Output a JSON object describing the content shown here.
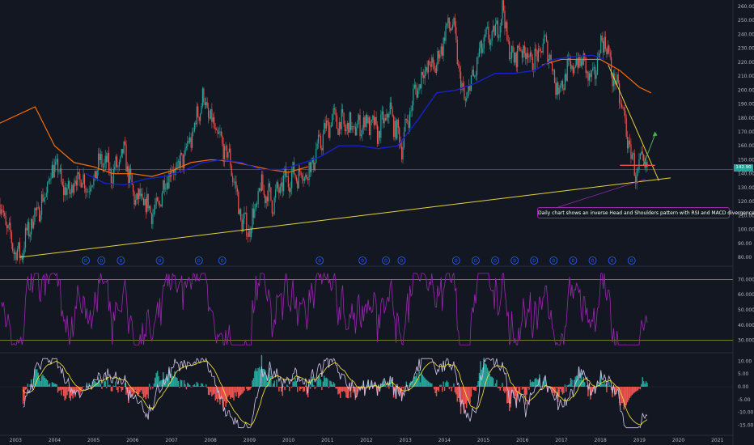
{
  "chart_data": [
    {
      "type": "candlestick",
      "panel": "price",
      "y_ticks": [
        "260.00",
        "250.00",
        "240.00",
        "230.00",
        "220.00",
        "210.00",
        "200.00",
        "190.00",
        "180.00",
        "170.00",
        "160.00",
        "150.00",
        "140.00",
        "130.00",
        "120.00",
        "110.00",
        "100.00",
        "90.00",
        "80.00"
      ],
      "ylim": [
        80,
        260
      ],
      "last_price_label": "142.90",
      "annotation": "Daily chart shows an inverse Head and Shoulders pattern with RSI and MACD divergence.",
      "dividend_marker_label": "D",
      "dividend_dates": [
        2004.8,
        2005.2,
        2005.7,
        2006.7,
        2007.7,
        2008.3,
        2010.8,
        2011.9,
        2012.5,
        2012.9,
        2014.3,
        2014.8,
        2015.3,
        2015.8,
        2016.3,
        2016.8,
        2017.3,
        2017.8,
        2018.3,
        2018.8
      ],
      "price_path": [
        [
          2002.6,
          118
        ],
        [
          2002.9,
          90
        ],
        [
          2003.1,
          80
        ],
        [
          2003.4,
          105
        ],
        [
          2003.7,
          120
        ],
        [
          2004.0,
          148
        ],
        [
          2004.3,
          125
        ],
        [
          2004.6,
          138
        ],
        [
          2004.9,
          130
        ],
        [
          2005.2,
          150
        ],
        [
          2005.5,
          140
        ],
        [
          2005.8,
          155
        ],
        [
          2006.0,
          125
        ],
        [
          2006.3,
          118
        ],
        [
          2006.6,
          112
        ],
        [
          2006.9,
          140
        ],
        [
          2007.2,
          145
        ],
        [
          2007.5,
          165
        ],
        [
          2007.8,
          195
        ],
        [
          2008.0,
          178
        ],
        [
          2008.3,
          160
        ],
        [
          2008.5,
          150
        ],
        [
          2008.8,
          105
        ],
        [
          2009.0,
          100
        ],
        [
          2009.3,
          130
        ],
        [
          2009.6,
          120
        ],
        [
          2009.9,
          135
        ],
        [
          2010.2,
          140
        ],
        [
          2010.5,
          140
        ],
        [
          2010.8,
          162
        ],
        [
          2011.1,
          180
        ],
        [
          2011.4,
          175
        ],
        [
          2011.7,
          172
        ],
        [
          2012.0,
          178
        ],
        [
          2012.3,
          170
        ],
        [
          2012.6,
          185
        ],
        [
          2012.9,
          160
        ],
        [
          2013.2,
          195
        ],
        [
          2013.5,
          215
        ],
        [
          2013.8,
          218
        ],
        [
          2014.0,
          240
        ],
        [
          2014.2,
          250
        ],
        [
          2014.5,
          190
        ],
        [
          2014.8,
          215
        ],
        [
          2015.0,
          235
        ],
        [
          2015.3,
          240
        ],
        [
          2015.5,
          258
        ],
        [
          2015.7,
          222
        ],
        [
          2016.0,
          230
        ],
        [
          2016.3,
          220
        ],
        [
          2016.6,
          235
        ],
        [
          2016.9,
          200
        ],
        [
          2017.2,
          215
        ],
        [
          2017.5,
          222
        ],
        [
          2017.8,
          205
        ],
        [
          2018.0,
          232
        ],
        [
          2018.1,
          238
        ],
        [
          2018.3,
          212
        ],
        [
          2018.5,
          195
        ],
        [
          2018.7,
          165
        ],
        [
          2018.9,
          140
        ],
        [
          2019.1,
          148
        ],
        [
          2019.2,
          143
        ]
      ],
      "ma_long": [
        [
          2002.5,
          175
        ],
        [
          2003.5,
          188
        ],
        [
          2004.0,
          160
        ],
        [
          2004.5,
          148
        ],
        [
          2005.0,
          145
        ],
        [
          2005.5,
          140
        ],
        [
          2006.0,
          140
        ],
        [
          2006.5,
          138
        ],
        [
          2007.0,
          142
        ],
        [
          2007.5,
          148
        ],
        [
          2008.0,
          150
        ],
        [
          2008.5,
          149
        ],
        [
          2009.0,
          146
        ],
        [
          2009.5,
          143
        ],
        [
          2010.0,
          141
        ],
        [
          2010.5,
          145
        ]
      ],
      "ma_long2": [
        [
          2016.5,
          218
        ],
        [
          2017.0,
          222
        ],
        [
          2017.5,
          222
        ],
        [
          2018.0,
          222
        ],
        [
          2018.5,
          214
        ],
        [
          2019.0,
          202
        ],
        [
          2019.3,
          198
        ]
      ],
      "ma_mid": [
        [
          2004.8,
          140
        ],
        [
          2005.3,
          133
        ],
        [
          2005.8,
          132
        ],
        [
          2006.3,
          136
        ],
        [
          2006.8,
          138
        ],
        [
          2007.3,
          142
        ],
        [
          2007.8,
          148
        ],
        [
          2008.3,
          150
        ],
        [
          2008.8,
          148
        ],
        [
          2009.3,
          143
        ],
        [
          2009.8,
          143
        ],
        [
          2010.3,
          147
        ],
        [
          2010.8,
          152
        ],
        [
          2011.3,
          160
        ],
        [
          2011.8,
          160
        ],
        [
          2012.3,
          158
        ],
        [
          2012.8,
          160
        ],
        [
          2013.3,
          178
        ],
        [
          2013.8,
          198
        ],
        [
          2014.3,
          200
        ],
        [
          2014.8,
          205
        ],
        [
          2015.3,
          212
        ],
        [
          2015.8,
          212
        ],
        [
          2016.3,
          214
        ],
        [
          2016.8,
          222
        ],
        [
          2017.3,
          224
        ],
        [
          2017.8,
          225
        ],
        [
          2018.1,
          222
        ]
      ],
      "trendline": [
        [
          2003.1,
          80
        ],
        [
          2019.8,
          137
        ]
      ],
      "neckline": [
        [
          2018.5,
          146
        ],
        [
          2019.4,
          146
        ]
      ],
      "downtrend": [
        [
          2018.2,
          218
        ],
        [
          2019.5,
          135
        ]
      ],
      "target_arrow": [
        [
          2019.1,
          146
        ],
        [
          2019.4,
          168
        ]
      ],
      "x_ticks": [
        "2003",
        "2004",
        "2005",
        "2006",
        "2007",
        "2008",
        "2009",
        "2010",
        "2011",
        "2012",
        "2013",
        "2014",
        "2015",
        "2016",
        "2017",
        "2018",
        "2019",
        "2020",
        "2021"
      ]
    },
    {
      "type": "line",
      "panel": "rsi",
      "y_ticks": [
        "70.0000",
        "60.0000",
        "50.0000",
        "40.0000",
        "30.0000"
      ],
      "ylim": [
        25,
        75
      ],
      "upper_band": 70,
      "lower_band": 30
    },
    {
      "type": "macd",
      "panel": "macd",
      "y_ticks": [
        "10.00",
        "5.00",
        "0.00",
        "-5.00",
        "-10.00",
        "-15.00"
      ],
      "ylim": [
        -18,
        12
      ]
    }
  ],
  "colors": {
    "bg": "#131722",
    "up": "#26a69a",
    "down": "#ef5350",
    "ma_long": "#ff6d00",
    "ma_mid": "#1522ce",
    "trend": "#e6d33a",
    "rsi": "#9c27b0",
    "macd": "#d1c4e9",
    "signal": "#ffeb3b",
    "hist_up": "#26a69a",
    "hist_down": "#ef5350",
    "grid_line": "#2a2e39",
    "band": "#9e9d24"
  }
}
